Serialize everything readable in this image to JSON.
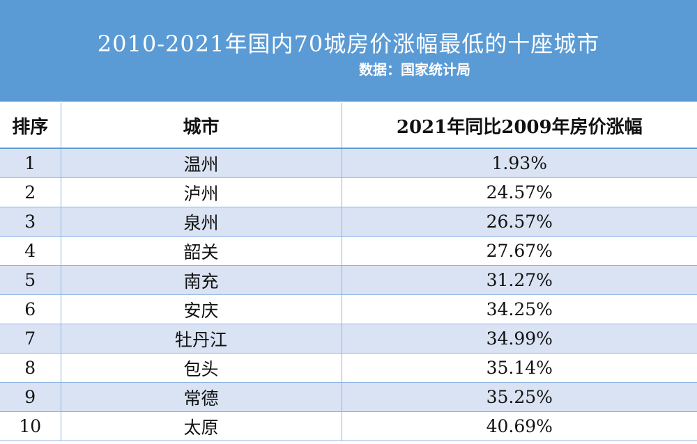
{
  "header": {
    "title": "2010-2021年国内70城房价涨幅最低的十座城市",
    "subtitle": "数据：国家统计局"
  },
  "table": {
    "columns": [
      "排序",
      "城市",
      "2021年同比2009年房价涨幅"
    ],
    "rows": [
      [
        "1",
        "温州",
        "1.93%"
      ],
      [
        "2",
        "泸州",
        "24.57%"
      ],
      [
        "3",
        "泉州",
        "26.57%"
      ],
      [
        "4",
        "韶关",
        "27.67%"
      ],
      [
        "5",
        "南充",
        "31.27%"
      ],
      [
        "6",
        "安庆",
        "34.25%"
      ],
      [
        "7",
        "牡丹江",
        "34.99%"
      ],
      [
        "8",
        "包头",
        "35.14%"
      ],
      [
        "9",
        "常德",
        "35.25%"
      ],
      [
        "10",
        "太原",
        "40.69%"
      ]
    ]
  }
}
